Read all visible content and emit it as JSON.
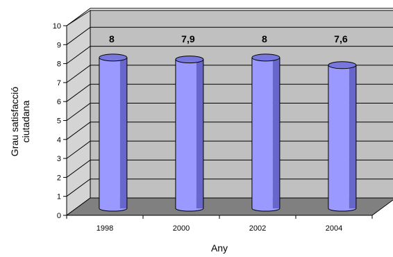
{
  "chart_data": {
    "type": "bar",
    "title": "",
    "xlabel": "Any",
    "ylabel_lines": [
      "Grau satisfacció",
      "ciutadana"
    ],
    "categories": [
      "1998",
      "2000",
      "2002",
      "2004"
    ],
    "values": [
      8,
      7.9,
      8,
      7.6
    ],
    "value_labels": [
      "8",
      "7,9",
      "8",
      "7,6"
    ],
    "ylim": [
      0,
      10
    ],
    "yticks": [
      0,
      1,
      2,
      3,
      4,
      5,
      6,
      7,
      8,
      9,
      10
    ],
    "grid": true,
    "legend": "none",
    "style": "3d-cylinder",
    "colors": {
      "bar_front": "#9999ff",
      "bar_side": "#6666cc",
      "bar_top": "#7777dd",
      "back_wall": "#c0c0c0",
      "side_wall": "#d4d4d4",
      "floor": "#808080"
    }
  }
}
